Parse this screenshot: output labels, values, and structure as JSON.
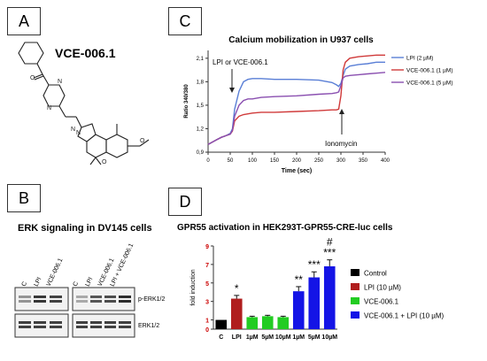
{
  "panel_a": {
    "label": "A",
    "compound_name": "VCE-006.1"
  },
  "panel_b": {
    "label": "B",
    "title": "ERK signaling in DV145 cells",
    "lanes_left": [
      "C",
      "LPI",
      "VCE-006.1"
    ],
    "lanes_right": [
      "C",
      "LPI",
      "VCE-006.1",
      "LPI + VCE-006.1"
    ],
    "band_labels": [
      "p-ERK1/2",
      "ERK1/2"
    ]
  },
  "panel_c": {
    "label": "C",
    "annotation_left": "LPI or VCE-006.1",
    "annotation_right": "Ionomycin"
  },
  "panel_d": {
    "label": "D",
    "legend": [
      "Control",
      "LPI (10 µM)",
      "VCE-006.1",
      "VCE-006.1 + LPI (10 µM)"
    ]
  },
  "colors": {
    "lpi_line": "#5a7fd6",
    "vce1_line": "#d03a3a",
    "vce5_line": "#8a4fb0",
    "control": "#000000",
    "lpi": "#b01e1e",
    "vce": "#22cc22",
    "combo": "#1414e6"
  },
  "chart_data": [
    {
      "type": "line",
      "title": "Calcium mobilization in U937 cells",
      "xlabel": "Time (sec)",
      "ylabel": "Ratio 340/380",
      "xlim": [
        0,
        400
      ],
      "ylim": [
        0.9,
        2.2
      ],
      "xticks": [
        "0",
        "50",
        "100",
        "150",
        "200",
        "250",
        "300",
        "350",
        "400"
      ],
      "yticks": [
        "0,9",
        "1,2",
        "1,5",
        "1,8",
        "2,1"
      ],
      "legend_position": "top-right",
      "x": [
        0,
        10,
        20,
        30,
        40,
        50,
        55,
        60,
        70,
        80,
        90,
        100,
        120,
        150,
        200,
        250,
        280,
        290,
        295,
        300,
        305,
        310,
        320,
        340,
        360,
        380,
        400
      ],
      "series": [
        {
          "name": "LPI (2 µM)",
          "values": [
            1.0,
            1.03,
            1.06,
            1.09,
            1.11,
            1.14,
            1.2,
            1.45,
            1.68,
            1.8,
            1.83,
            1.84,
            1.84,
            1.83,
            1.83,
            1.82,
            1.79,
            1.76,
            1.74,
            1.78,
            1.88,
            1.96,
            2.0,
            2.02,
            2.03,
            2.05,
            2.05
          ]
        },
        {
          "name": "VCE-006.1 (1 µM)",
          "values": [
            1.0,
            1.03,
            1.06,
            1.09,
            1.11,
            1.13,
            1.17,
            1.3,
            1.36,
            1.38,
            1.39,
            1.4,
            1.41,
            1.41,
            1.42,
            1.43,
            1.44,
            1.44,
            1.45,
            1.62,
            1.95,
            2.05,
            2.1,
            2.12,
            2.13,
            2.14,
            2.14
          ]
        },
        {
          "name": "VCE-006.1 (5 µM)",
          "values": [
            1.0,
            1.03,
            1.06,
            1.09,
            1.11,
            1.13,
            1.18,
            1.36,
            1.5,
            1.56,
            1.58,
            1.58,
            1.6,
            1.61,
            1.62,
            1.64,
            1.65,
            1.66,
            1.67,
            1.75,
            1.85,
            1.87,
            1.88,
            1.89,
            1.9,
            1.91,
            1.92
          ]
        }
      ]
    },
    {
      "type": "bar",
      "title": "GPR55 activation in HEK293T-GPR55-CRE-luc cells",
      "xlabel": "",
      "ylabel": "fold induction",
      "ylim": [
        0,
        9
      ],
      "yticks": [
        "0",
        "1",
        "3",
        "5",
        "7",
        "9"
      ],
      "categories": [
        "C",
        "LPI",
        "1µM",
        "5µM",
        "10µM",
        "1µM",
        "5µM",
        "10µM"
      ],
      "values": [
        1.0,
        3.3,
        1.3,
        1.4,
        1.3,
        4.1,
        5.6,
        6.8
      ],
      "errors": [
        0,
        0.35,
        0.1,
        0.1,
        0.1,
        0.5,
        0.6,
        0.7
      ],
      "groups": [
        "Control",
        "LPI (10 µM)",
        "VCE-006.1",
        "VCE-006.1",
        "VCE-006.1",
        "VCE-006.1 + LPI (10 µM)",
        "VCE-006.1 + LPI (10 µM)",
        "VCE-006.1 + LPI (10 µM)"
      ],
      "annotations": [
        "",
        "*",
        "",
        "",
        "",
        "**",
        "***",
        "***"
      ],
      "extra_annotation": "#",
      "legend_position": "right"
    }
  ]
}
